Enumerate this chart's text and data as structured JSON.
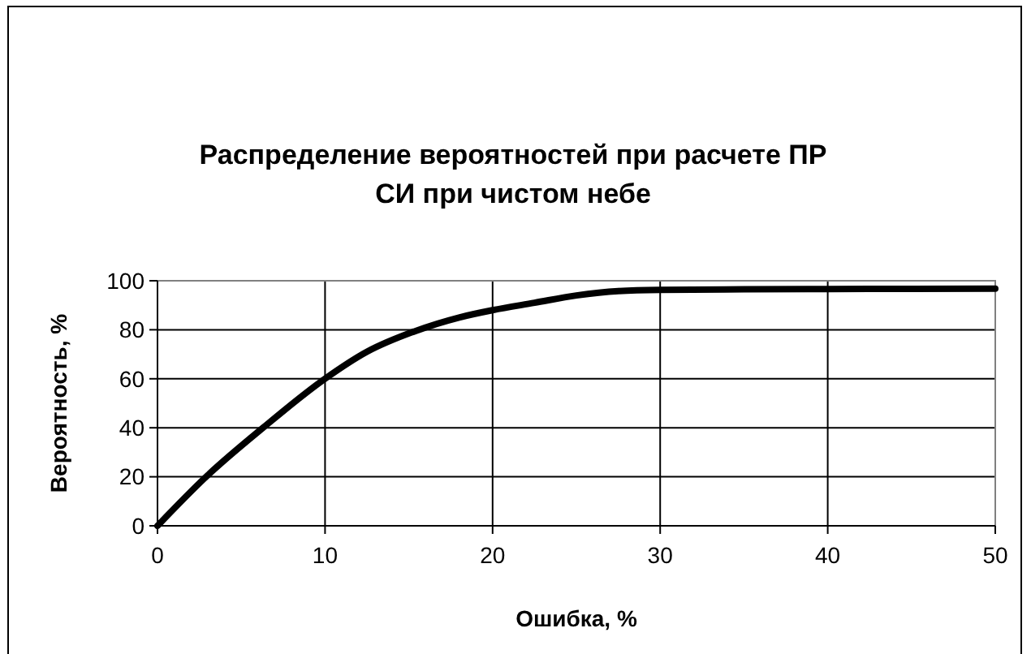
{
  "chart_data": {
    "type": "line",
    "title": "Распределение вероятностей при расчете ПР\nСИ при чистом небе",
    "xlabel": "Ошибка, %",
    "ylabel": "Вероятность, %",
    "x": [
      0,
      2.9,
      6.3,
      10,
      12.5,
      15.4,
      18,
      20,
      22.5,
      25,
      27.5,
      30,
      35,
      40,
      45,
      50
    ],
    "series": [
      {
        "color": "#000000",
        "values": [
          0,
          20,
          40,
          60,
          71,
          79.5,
          85,
          88,
          91,
          94,
          95.8,
          96.3,
          96.5,
          96.6,
          96.7,
          96.8
        ]
      }
    ],
    "xlim": [
      0,
      50
    ],
    "ylim": [
      0,
      100
    ],
    "xticks": [
      0,
      10,
      20,
      30,
      40,
      50
    ],
    "yticks": [
      0,
      20,
      40,
      60,
      80,
      100
    ],
    "grid": true,
    "marker": "none",
    "line_style": "solid"
  }
}
